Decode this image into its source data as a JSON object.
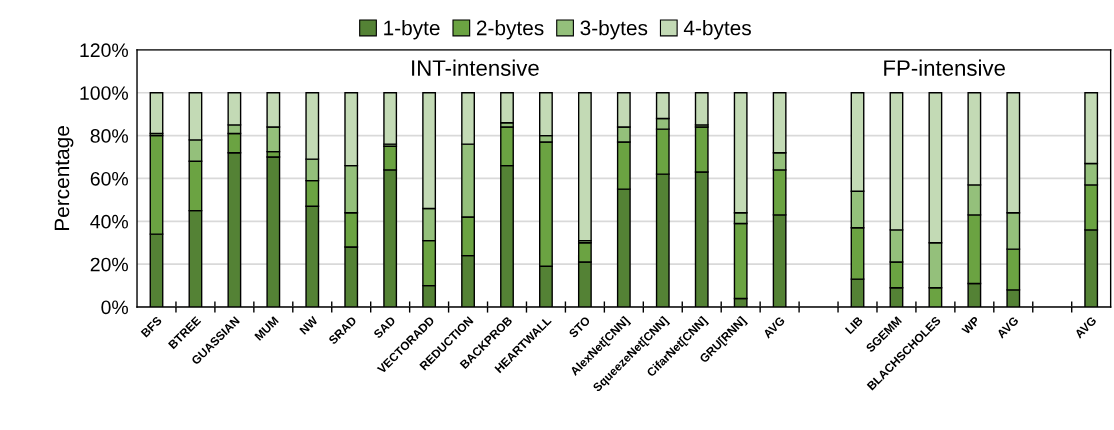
{
  "chart_data": {
    "type": "bar",
    "stacked": true,
    "categories": [
      "BFS",
      "BTREE",
      "GUASSIAN",
      "MUM",
      "NW",
      "SRAD",
      "SAD",
      "VECTORADD",
      "REDUCTION",
      "BACKPROB",
      "HEARTWALL",
      "STO",
      "AlexNet[CNN]",
      "SqueezeNet[CNN]",
      "CifarNet[CNN]",
      "GRU[RNN]",
      "AVG",
      null,
      "LIB",
      "SGEMM",
      "BLACHSCHOLES",
      "WP",
      "AVG",
      null,
      "AVG"
    ],
    "series": [
      {
        "name": "1-byte",
        "color": "#548235",
        "values": [
          34,
          45,
          72,
          70,
          47,
          28,
          64,
          10,
          24,
          66,
          19,
          21,
          55,
          62,
          63,
          4,
          43,
          null,
          13,
          9,
          0,
          11,
          8,
          null,
          36
        ]
      },
      {
        "name": "2-bytes",
        "color": "#6ba342",
        "values": [
          46,
          23,
          9,
          2.5,
          12,
          16,
          11,
          21,
          18,
          18,
          58,
          9,
          22,
          21,
          21,
          35,
          21,
          null,
          24,
          12,
          9,
          32,
          19,
          null,
          21
        ]
      },
      {
        "name": "3-bytes",
        "color": "#94c07b",
        "values": [
          1,
          10,
          4,
          11.5,
          10,
          22,
          1,
          15,
          34,
          2,
          3,
          1,
          7,
          5,
          1,
          5,
          8,
          null,
          17,
          15,
          21,
          14,
          17,
          null,
          10
        ]
      },
      {
        "name": "4-bytes",
        "color": "#c3dab5",
        "values": [
          19,
          22,
          15,
          16,
          31,
          34,
          24,
          54,
          24,
          14,
          20,
          69,
          16,
          12,
          15,
          56,
          28,
          null,
          46,
          64,
          70,
          43,
          56,
          null,
          33
        ]
      }
    ],
    "ylabel": "Percentage",
    "ylim": [
      0,
      120
    ],
    "yticks": [
      {
        "value": 0,
        "label": "0%"
      },
      {
        "value": 20,
        "label": "20%"
      },
      {
        "value": 40,
        "label": "40%"
      },
      {
        "value": 60,
        "label": "60%"
      },
      {
        "value": 80,
        "label": "80%"
      },
      {
        "value": 100,
        "label": "100%"
      },
      {
        "value": 120,
        "label": "120%"
      }
    ],
    "annotations": [
      "INT-intensive",
      "FP-intensive"
    ],
    "grid": "y",
    "legend": "top"
  }
}
